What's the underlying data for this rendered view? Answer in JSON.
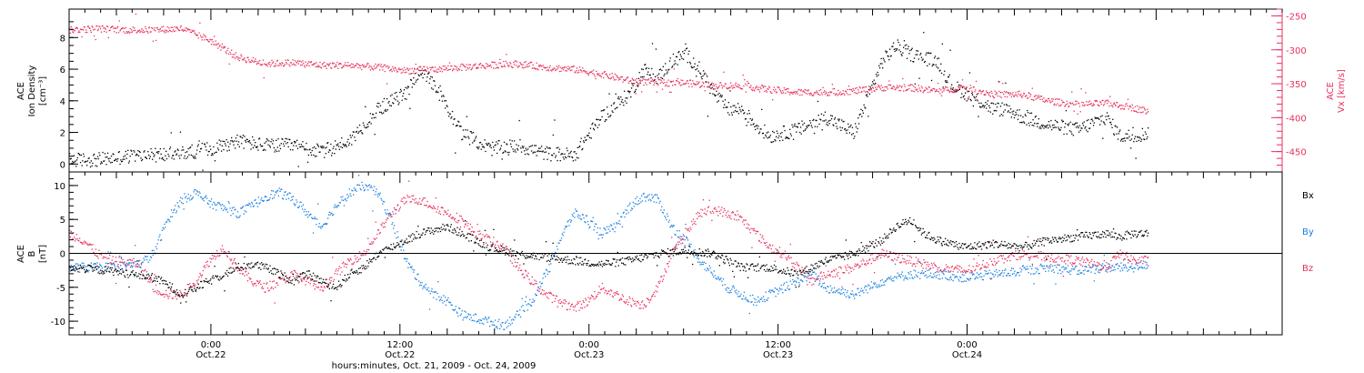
{
  "chart_data": [
    {
      "type": "scatter",
      "panel": "top",
      "ylabel_lines": [
        "ACE",
        "Ion Density",
        "[cm⁻³]"
      ],
      "y2label_lines": [
        "ACE",
        "Vx [km/s]"
      ],
      "ylim": [
        -0.5,
        9.8
      ],
      "yticks": [
        "0",
        "2",
        "4",
        "6",
        "8"
      ],
      "y2lim": [
        -480,
        -240
      ],
      "y2ticks": [
        "-250",
        "-300",
        "-350",
        "-400",
        "-450"
      ],
      "series": [
        {
          "axis": "left",
          "color": "#000000",
          "keypoints": [
            [
              0,
              0.3
            ],
            [
              2,
              0.3
            ],
            [
              4,
              0.5
            ],
            [
              6,
              0.6
            ],
            [
              8,
              0.7
            ],
            [
              10,
              1.0
            ],
            [
              12,
              1.5
            ],
            [
              14,
              1.2
            ],
            [
              16,
              1.2
            ],
            [
              18,
              0.8
            ],
            [
              20,
              1.5
            ],
            [
              22,
              3.5
            ],
            [
              24,
              4.5
            ],
            [
              25,
              6.0
            ],
            [
              26,
              5.0
            ],
            [
              27,
              3.5
            ],
            [
              28,
              2.0
            ],
            [
              30,
              1.0
            ],
            [
              32,
              1.2
            ],
            [
              34,
              0.7
            ],
            [
              36,
              0.6
            ],
            [
              38,
              3.0
            ],
            [
              40,
              4.5
            ],
            [
              41,
              6.0
            ],
            [
              42,
              5.5
            ],
            [
              43,
              6.5
            ],
            [
              44,
              7.0
            ],
            [
              45,
              6.0
            ],
            [
              46,
              4.5
            ],
            [
              47,
              3.5
            ],
            [
              48,
              3.5
            ],
            [
              49,
              2.5
            ],
            [
              50,
              1.8
            ],
            [
              52,
              2.2
            ],
            [
              54,
              3.0
            ],
            [
              56,
              2.0
            ],
            [
              58,
              6.5
            ],
            [
              59,
              7.5
            ],
            [
              60,
              7.0
            ],
            [
              62,
              6.5
            ],
            [
              63,
              5.0
            ],
            [
              64,
              4.5
            ],
            [
              66,
              3.5
            ],
            [
              67,
              3.5
            ],
            [
              68,
              3.0
            ],
            [
              70,
              2.5
            ],
            [
              72,
              2.2
            ],
            [
              74,
              3.0
            ],
            [
              75,
              1.8
            ],
            [
              76,
              1.8
            ],
            [
              77,
              2.0
            ]
          ]
        },
        {
          "axis": "right",
          "color": "#e8305c",
          "keypoints": [
            [
              0,
              -270
            ],
            [
              2,
              -268
            ],
            [
              4,
              -270
            ],
            [
              6,
              -270
            ],
            [
              8,
              -268
            ],
            [
              10,
              -285
            ],
            [
              12,
              -310
            ],
            [
              14,
              -320
            ],
            [
              16,
              -318
            ],
            [
              18,
              -322
            ],
            [
              20,
              -322
            ],
            [
              22,
              -325
            ],
            [
              24,
              -330
            ],
            [
              26,
              -328
            ],
            [
              28,
              -325
            ],
            [
              30,
              -322
            ],
            [
              32,
              -320
            ],
            [
              34,
              -325
            ],
            [
              36,
              -328
            ],
            [
              38,
              -335
            ],
            [
              40,
              -345
            ],
            [
              42,
              -348
            ],
            [
              44,
              -348
            ],
            [
              46,
              -352
            ],
            [
              48,
              -352
            ],
            [
              50,
              -358
            ],
            [
              52,
              -362
            ],
            [
              54,
              -362
            ],
            [
              56,
              -360
            ],
            [
              58,
              -355
            ],
            [
              60,
              -355
            ],
            [
              62,
              -360
            ],
            [
              64,
              -355
            ],
            [
              66,
              -365
            ],
            [
              68,
              -365
            ],
            [
              70,
              -375
            ],
            [
              72,
              -380
            ],
            [
              74,
              -378
            ],
            [
              76,
              -385
            ],
            [
              77,
              -390
            ]
          ]
        }
      ]
    },
    {
      "type": "scatter",
      "panel": "bottom",
      "ylabel_lines": [
        "ACE",
        "B",
        "[nT]"
      ],
      "ylim": [
        -12,
        12
      ],
      "yticks": [
        "10",
        "5",
        "0",
        "-5",
        "-10"
      ],
      "legend_position": "right",
      "series": [
        {
          "name": "Bx",
          "color": "#000000",
          "keypoints": [
            [
              0,
              -2
            ],
            [
              3,
              -2.5
            ],
            [
              6,
              -3.5
            ],
            [
              7,
              -4.5
            ],
            [
              8,
              -6
            ],
            [
              9,
              -5
            ],
            [
              10,
              -4
            ],
            [
              11,
              -3
            ],
            [
              12,
              -2
            ],
            [
              13,
              -1.5
            ],
            [
              14,
              -2
            ],
            [
              15,
              -3
            ],
            [
              16,
              -4
            ],
            [
              17,
              -3
            ],
            [
              18,
              -4
            ],
            [
              19,
              -5
            ],
            [
              20,
              -3
            ],
            [
              21,
              -2
            ],
            [
              22,
              0
            ],
            [
              23,
              1
            ],
            [
              24,
              2
            ],
            [
              25,
              3
            ],
            [
              26,
              3.5
            ],
            [
              27,
              4
            ],
            [
              28,
              3
            ],
            [
              30,
              1
            ],
            [
              32,
              0
            ],
            [
              34,
              -0.5
            ],
            [
              36,
              -1
            ],
            [
              38,
              -1.5
            ],
            [
              40,
              -1
            ],
            [
              42,
              0
            ],
            [
              44,
              0.5
            ],
            [
              46,
              0
            ],
            [
              48,
              -2
            ],
            [
              50,
              -2
            ],
            [
              52,
              -3
            ],
            [
              54,
              -1
            ],
            [
              56,
              0
            ],
            [
              58,
              2
            ],
            [
              59,
              4
            ],
            [
              60,
              5
            ],
            [
              61,
              3
            ],
            [
              62,
              2
            ],
            [
              64,
              1
            ],
            [
              66,
              1.5
            ],
            [
              68,
              1
            ],
            [
              70,
              2
            ],
            [
              72,
              2.5
            ],
            [
              74,
              3
            ],
            [
              75,
              2.5
            ],
            [
              76,
              3
            ],
            [
              77,
              3
            ]
          ]
        },
        {
          "name": "By",
          "color": "#1a80e0",
          "keypoints": [
            [
              0,
              -2
            ],
            [
              3,
              -2
            ],
            [
              5,
              -1.5
            ],
            [
              6,
              0
            ],
            [
              7,
              5
            ],
            [
              8,
              8
            ],
            [
              9,
              9
            ],
            [
              10,
              7.5
            ],
            [
              12,
              6
            ],
            [
              13,
              7
            ],
            [
              14,
              8.5
            ],
            [
              15,
              9
            ],
            [
              16,
              8
            ],
            [
              17,
              6
            ],
            [
              18,
              4
            ],
            [
              19,
              7
            ],
            [
              20,
              9
            ],
            [
              21,
              10
            ],
            [
              22,
              9
            ],
            [
              23,
              5
            ],
            [
              24,
              -1
            ],
            [
              25,
              -4
            ],
            [
              26,
              -6
            ],
            [
              27,
              -7
            ],
            [
              28,
              -9
            ],
            [
              30,
              -10
            ],
            [
              31,
              -10.5
            ],
            [
              32,
              -9
            ],
            [
              33,
              -7
            ],
            [
              34,
              -3
            ],
            [
              35,
              2
            ],
            [
              36,
              6
            ],
            [
              37,
              5
            ],
            [
              38,
              3
            ],
            [
              39,
              4
            ],
            [
              40,
              7
            ],
            [
              41,
              8.5
            ],
            [
              42,
              8
            ],
            [
              43,
              4
            ],
            [
              44,
              2
            ],
            [
              45,
              -1
            ],
            [
              46,
              -3
            ],
            [
              47,
              -5
            ],
            [
              48,
              -6
            ],
            [
              49,
              -7
            ],
            [
              50,
              -6
            ],
            [
              51,
              -5
            ],
            [
              52,
              -4
            ],
            [
              53,
              -3
            ],
            [
              54,
              -5
            ],
            [
              56,
              -6
            ],
            [
              58,
              -4
            ],
            [
              60,
              -3
            ],
            [
              62,
              -3
            ],
            [
              64,
              -3.5
            ],
            [
              66,
              -3
            ],
            [
              68,
              -2.5
            ],
            [
              70,
              -2
            ],
            [
              72,
              -2.5
            ],
            [
              74,
              -2
            ],
            [
              76,
              -2
            ],
            [
              77,
              -1.5
            ]
          ]
        },
        {
          "name": "Bz",
          "color": "#e8305c",
          "keypoints": [
            [
              0,
              3
            ],
            [
              1,
              2
            ],
            [
              2,
              0
            ],
            [
              3,
              -1
            ],
            [
              5,
              -1.5
            ],
            [
              6,
              -5
            ],
            [
              7,
              -6
            ],
            [
              8,
              -6
            ],
            [
              9,
              -4
            ],
            [
              10,
              -1
            ],
            [
              11,
              1
            ],
            [
              12,
              -2
            ],
            [
              13,
              -4
            ],
            [
              14,
              -5
            ],
            [
              15,
              -4
            ],
            [
              16,
              -3
            ],
            [
              17,
              -4
            ],
            [
              18,
              -5
            ],
            [
              19,
              -3
            ],
            [
              20,
              -1
            ],
            [
              21,
              0
            ],
            [
              22,
              3
            ],
            [
              23,
              6
            ],
            [
              24,
              8
            ],
            [
              25,
              8
            ],
            [
              26,
              7
            ],
            [
              27,
              6
            ],
            [
              28,
              5
            ],
            [
              29,
              3
            ],
            [
              30,
              2
            ],
            [
              31,
              1
            ],
            [
              32,
              -2
            ],
            [
              33,
              -4
            ],
            [
              34,
              -6
            ],
            [
              35,
              -7
            ],
            [
              36,
              -8
            ],
            [
              37,
              -7
            ],
            [
              38,
              -5
            ],
            [
              39,
              -6
            ],
            [
              40,
              -7
            ],
            [
              41,
              -7.5
            ],
            [
              42,
              -5
            ],
            [
              43,
              0
            ],
            [
              44,
              3
            ],
            [
              45,
              6
            ],
            [
              46,
              6.5
            ],
            [
              47,
              6
            ],
            [
              48,
              5
            ],
            [
              49,
              3
            ],
            [
              50,
              1
            ],
            [
              51,
              0
            ],
            [
              52,
              -2
            ],
            [
              53,
              -4
            ],
            [
              54,
              -3
            ],
            [
              56,
              -2
            ],
            [
              58,
              0
            ],
            [
              60,
              -1
            ],
            [
              62,
              -2
            ],
            [
              64,
              -2.5
            ],
            [
              66,
              -1
            ],
            [
              68,
              0
            ],
            [
              70,
              -0.5
            ],
            [
              72,
              -1
            ],
            [
              74,
              -2
            ],
            [
              75,
              0
            ],
            [
              76,
              -1
            ],
            [
              77,
              -1
            ]
          ]
        }
      ]
    }
  ],
  "x_axis": {
    "xlim_hours": [
      -9,
      68
    ],
    "major_ticks": [
      {
        "hours": 0,
        "time": "0:00",
        "date": "Oct.22"
      },
      {
        "hours": 12,
        "time": "12:00",
        "date": "Oct.22"
      },
      {
        "hours": 24,
        "time": "0:00",
        "date": "Oct.23"
      },
      {
        "hours": 36,
        "time": "12:00",
        "date": "Oct.23"
      },
      {
        "hours": 48,
        "time": "0:00",
        "date": "Oct.24"
      }
    ],
    "xlabel": "hours:minutes, Oct. 21, 2009 - Oct. 24, 2009"
  }
}
